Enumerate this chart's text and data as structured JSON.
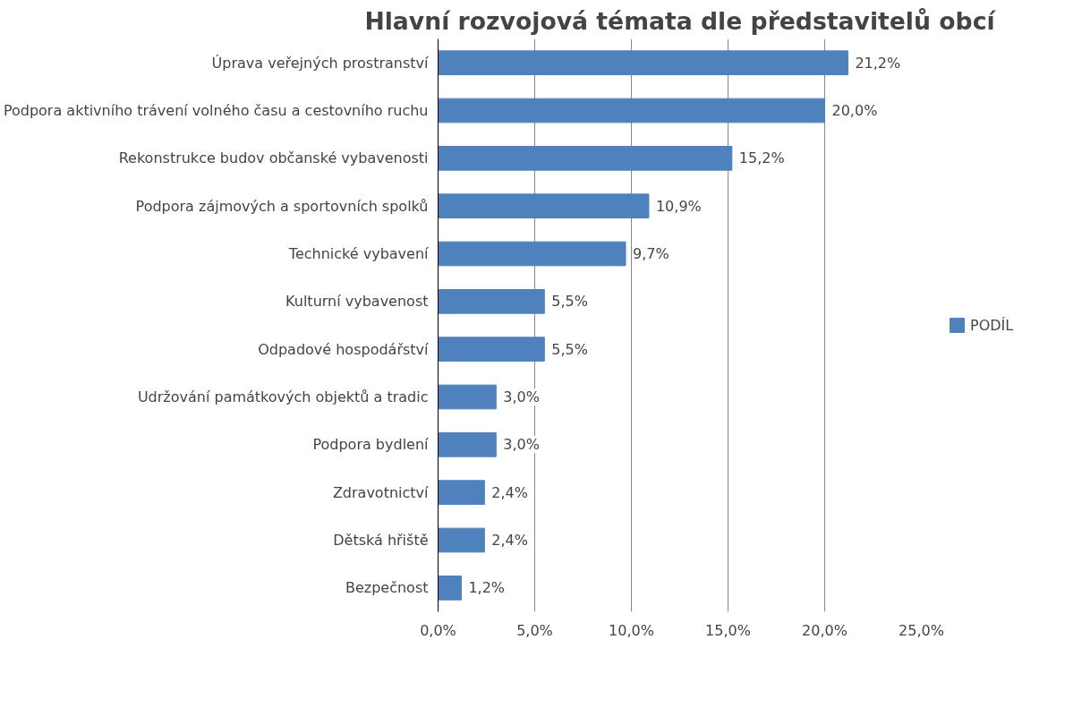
{
  "chart_data": {
    "type": "bar",
    "orientation": "horizontal",
    "title": "Hlavní rozvojová témata dle představitelů obcí",
    "categories": [
      "Úprava veřejných prostranství",
      "Podpora aktivního trávení volného času a cestovního ruchu",
      "Rekonstrukce budov občanské vybavenosti",
      "Podpora zájmových a sportovních spolků",
      "Technické vybavení",
      "Kulturní vybavenost",
      "Odpadové hospodářství",
      "Udržování památkových objektů a tradic",
      "Podpora bydlení",
      "Zdravotnictví",
      "Dětská hřiště",
      "Bezpečnost"
    ],
    "series": [
      {
        "name": "PODÍL",
        "color": "#4f81bd",
        "values": [
          21.2,
          20.0,
          15.2,
          10.9,
          9.7,
          5.5,
          5.5,
          3.0,
          3.0,
          2.4,
          2.4,
          1.2
        ],
        "value_labels": [
          "21,2%",
          "20,0%",
          "15,2%",
          "10,9%",
          "9,7%",
          "5,5%",
          "5,5%",
          "3,0%",
          "3,0%",
          "2,4%",
          "2,4%",
          "1,2%"
        ]
      }
    ],
    "xlim": [
      0,
      25
    ],
    "xticks": [
      {
        "value": 0,
        "label": "0,0%"
      },
      {
        "value": 5,
        "label": "5,0%"
      },
      {
        "value": 10,
        "label": "10,0%"
      },
      {
        "value": 15,
        "label": "15,0%"
      },
      {
        "value": 20,
        "label": "20,0%"
      },
      {
        "value": 25,
        "label": "25,0%"
      }
    ],
    "grid": "x",
    "legend": "right"
  }
}
